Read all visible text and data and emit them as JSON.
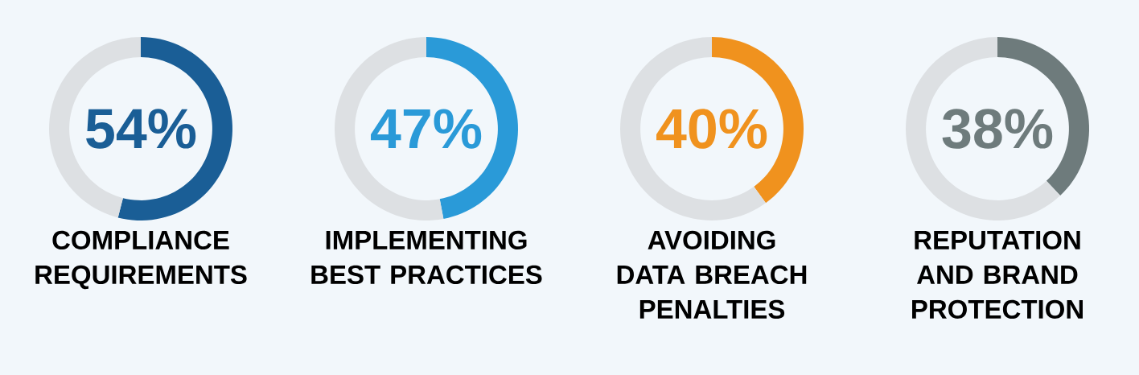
{
  "chart_data": [
    {
      "type": "donut",
      "title": "COMPLIANCE REQUIREMENTS",
      "categories": [
        null,
        null
      ],
      "values": [
        54,
        46
      ],
      "colors": [
        "#1a5e96",
        "#dde0e3"
      ],
      "annotations": [
        "54%"
      ]
    },
    {
      "type": "donut",
      "title": "IMPLEMENTING BEST PRACTICES",
      "categories": [
        null,
        null
      ],
      "values": [
        47,
        53
      ],
      "colors": [
        "#2a9ad8",
        "#dde0e3"
      ],
      "annotations": [
        "47%"
      ]
    },
    {
      "type": "donut",
      "title": "AVOIDING DATA BREACH PENALTIES",
      "categories": [
        null,
        null
      ],
      "values": [
        40,
        60
      ],
      "colors": [
        "#f0921e",
        "#dde0e3"
      ],
      "annotations": [
        "40%"
      ]
    },
    {
      "type": "donut",
      "title": "REPUTATION AND BRAND PROTECTION",
      "categories": [
        null,
        null
      ],
      "values": [
        38,
        62
      ],
      "colors": [
        "#6e7b7c",
        "#dde0e3"
      ],
      "annotations": [
        "38%"
      ]
    }
  ]
}
